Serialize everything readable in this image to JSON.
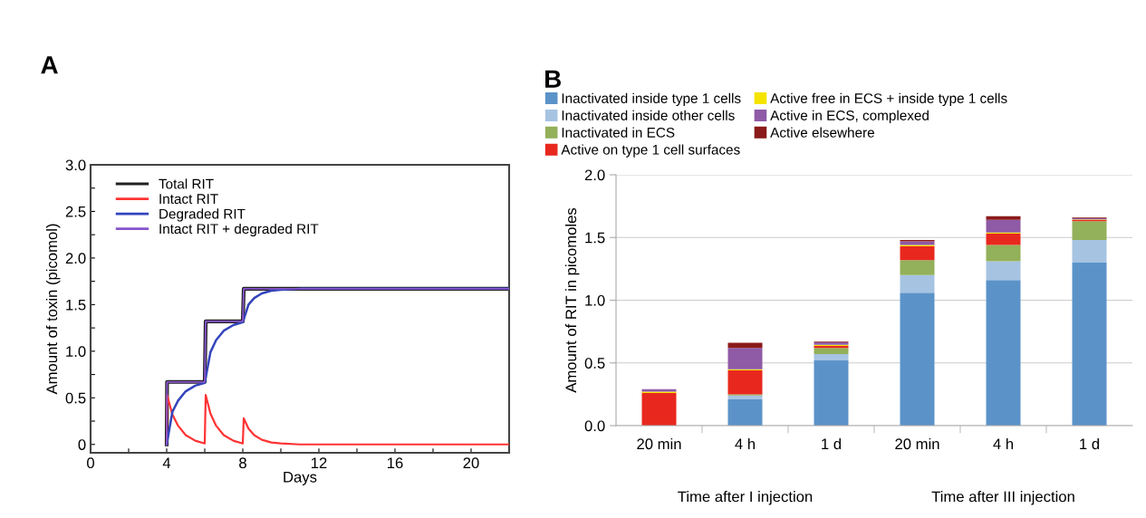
{
  "chart_data": [
    {
      "type": "line",
      "title": "A",
      "xlabel": "Days",
      "ylabel": "Amount of toxin (picomol)",
      "xlim": [
        0,
        22
      ],
      "ylim": [
        -0.09,
        3.0
      ],
      "xticks": [
        0,
        {
          "value": 2,
          "label": null
        },
        4,
        {
          "value": 6,
          "label": null
        },
        8,
        {
          "value": 10,
          "label": null
        },
        12,
        {
          "value": 14,
          "label": null
        },
        16,
        {
          "value": 18,
          "label": null
        },
        20
      ],
      "yticks": [
        0,
        {
          "value": 0.25,
          "label": null
        },
        0.5,
        {
          "value": 0.75,
          "label": null
        },
        {
          "value": 1.0,
          "label": "1.0"
        },
        {
          "value": 1.25,
          "label": null
        },
        1.5,
        {
          "value": 1.75,
          "label": null
        },
        {
          "value": 2.0,
          "label": "2.0"
        },
        {
          "value": 2.25,
          "label": null
        },
        2.5,
        {
          "value": 2.75,
          "label": null
        },
        {
          "value": 3.0,
          "label": "3.0"
        }
      ],
      "grid": false,
      "legend": "top left",
      "marker": "none",
      "line_style": "solid",
      "series": [
        {
          "name": "Total RIT",
          "color": "#222222",
          "x": [
            4,
            4.02,
            6.0,
            6.05,
            8.0,
            8.05,
            22
          ],
          "values": [
            0,
            0.67,
            0.67,
            1.32,
            1.32,
            1.67,
            1.67
          ]
        },
        {
          "name": "Intact RIT",
          "color": "#ff3333",
          "x": [
            4,
            4.02,
            4.3,
            4.6,
            5,
            5.5,
            6,
            6.05,
            6.3,
            6.6,
            7,
            7.5,
            8,
            8.05,
            8.3,
            8.6,
            9,
            9.5,
            10,
            11,
            22
          ],
          "values": [
            0,
            0.53,
            0.32,
            0.2,
            0.1,
            0.04,
            0.01,
            0.53,
            0.33,
            0.2,
            0.1,
            0.04,
            0.01,
            0.28,
            0.17,
            0.1,
            0.05,
            0.02,
            0.01,
            0,
            0
          ]
        },
        {
          "name": "Degraded RIT",
          "color": "#3344bb",
          "x": [
            4,
            4.3,
            4.6,
            5,
            5.5,
            6,
            6.3,
            6.6,
            7,
            7.5,
            8,
            8.3,
            8.6,
            9,
            9.5,
            10,
            11,
            22
          ],
          "values": [
            0,
            0.35,
            0.47,
            0.57,
            0.63,
            0.66,
            0.99,
            1.12,
            1.22,
            1.28,
            1.31,
            1.5,
            1.57,
            1.62,
            1.65,
            1.66,
            1.67,
            1.67
          ]
        },
        {
          "name": "Intact RIT + degraded RIT",
          "color": "#8855cc",
          "x": [
            4,
            4.02,
            6.0,
            6.05,
            8.0,
            8.05,
            22
          ],
          "values": [
            0,
            0.67,
            0.67,
            1.32,
            1.32,
            1.67,
            1.67
          ]
        }
      ]
    },
    {
      "type": "bar",
      "stacked": true,
      "title": "B",
      "ylabel": "Amount of RIT in picomoles",
      "categories": [
        "20 min",
        "4 h",
        "1 d",
        "20 min",
        "4 h",
        "1 d"
      ],
      "ylim": [
        0,
        2.0
      ],
      "yticks": [
        {
          "value": 0,
          "label": "0.0"
        },
        0.5,
        {
          "value": 1.0,
          "label": "1.0"
        },
        1.5,
        {
          "value": 2.0,
          "label": "2.0"
        }
      ],
      "grid": "y",
      "legend": "top",
      "annotations": [
        "Time after I injection",
        "Time after III injection"
      ],
      "series": [
        {
          "name": "Inactivated inside type 1 cells",
          "color": "#5b93c9",
          "values": [
            0,
            0.21,
            0.52,
            1.06,
            1.16,
            1.3
          ]
        },
        {
          "name": "Inactivated inside other cells",
          "color": "#a6c3e2",
          "values": [
            0,
            0.03,
            0.05,
            0.14,
            0.15,
            0.18
          ]
        },
        {
          "name": "Inactivated in ECS",
          "color": "#93b05a",
          "values": [
            0,
            0.01,
            0.05,
            0.12,
            0.13,
            0.15
          ]
        },
        {
          "name": "Active on type 1 cell surfaces",
          "color": "#e8281e",
          "values": [
            0.26,
            0.19,
            0.015,
            0.11,
            0.09,
            0.01
          ]
        },
        {
          "name": "Active free in ECS + inside type 1 cells",
          "color": "#f5e400",
          "values": [
            0.01,
            0.01,
            0.01,
            0.01,
            0.01,
            0.005
          ]
        },
        {
          "name": "Active in ECS, complexed",
          "color": "#8f5aa6",
          "values": [
            0.02,
            0.17,
            0.02,
            0.03,
            0.1,
            0.01
          ]
        },
        {
          "name": "Active elsewhere",
          "color": "#8b1a1a",
          "values": [
            0,
            0.04,
            0.005,
            0.01,
            0.03,
            0.005
          ]
        }
      ]
    }
  ]
}
